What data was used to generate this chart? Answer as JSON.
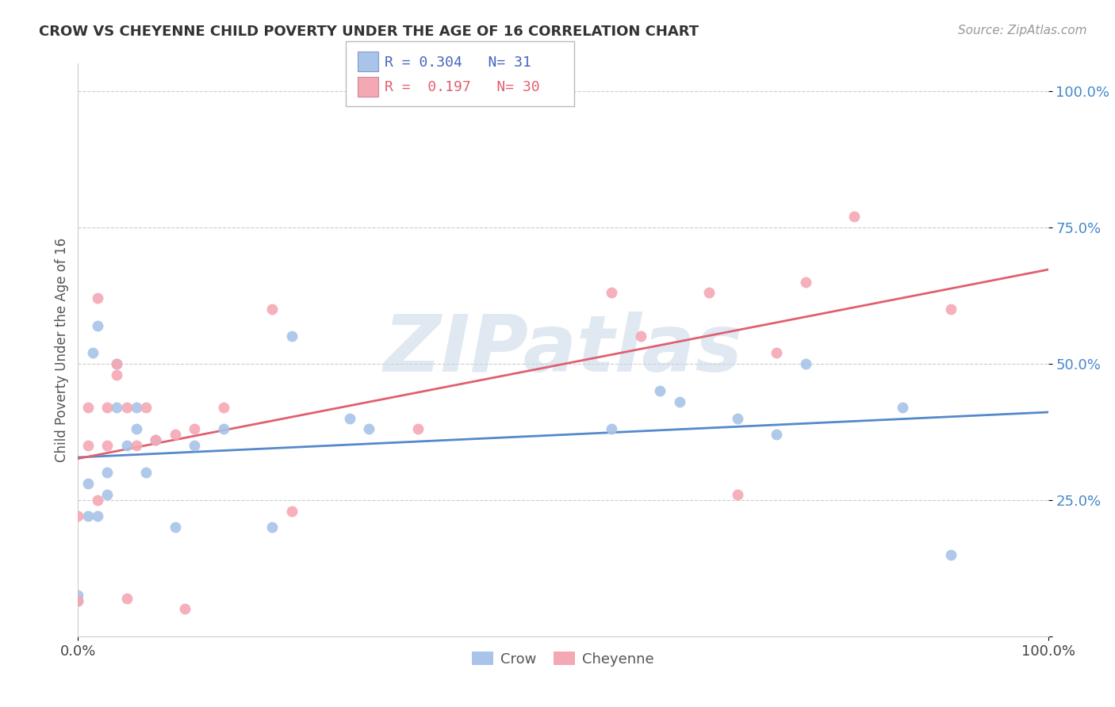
{
  "title": "CROW VS CHEYENNE CHILD POVERTY UNDER THE AGE OF 16 CORRELATION CHART",
  "source": "Source: ZipAtlas.com",
  "ylabel": "Child Poverty Under the Age of 16",
  "watermark": "ZIPatlas",
  "crow_R": 0.304,
  "crow_N": 31,
  "cheyenne_R": 0.197,
  "cheyenne_N": 30,
  "crow_color": "#a8c4e8",
  "cheyenne_color": "#f4a8b4",
  "crow_line_color": "#5588cc",
  "cheyenne_line_color": "#e06070",
  "legend_text_color_crow": "#4466bb",
  "legend_text_color_cheyenne": "#e06070",
  "crow_scatter_x": [
    0.0,
    0.0,
    0.01,
    0.01,
    0.015,
    0.02,
    0.02,
    0.03,
    0.03,
    0.04,
    0.04,
    0.05,
    0.06,
    0.06,
    0.07,
    0.08,
    0.1,
    0.12,
    0.15,
    0.2,
    0.22,
    0.28,
    0.3,
    0.55,
    0.6,
    0.62,
    0.68,
    0.72,
    0.75,
    0.85,
    0.9
  ],
  "crow_scatter_y": [
    0.065,
    0.075,
    0.22,
    0.28,
    0.52,
    0.57,
    0.22,
    0.26,
    0.3,
    0.42,
    0.5,
    0.35,
    0.38,
    0.42,
    0.3,
    0.36,
    0.2,
    0.35,
    0.38,
    0.2,
    0.55,
    0.4,
    0.38,
    0.38,
    0.45,
    0.43,
    0.4,
    0.37,
    0.5,
    0.42,
    0.15
  ],
  "cheyenne_scatter_x": [
    0.0,
    0.0,
    0.01,
    0.01,
    0.02,
    0.02,
    0.03,
    0.03,
    0.04,
    0.04,
    0.05,
    0.05,
    0.06,
    0.07,
    0.08,
    0.1,
    0.11,
    0.12,
    0.15,
    0.2,
    0.22,
    0.35,
    0.55,
    0.58,
    0.65,
    0.68,
    0.72,
    0.75,
    0.8,
    0.9
  ],
  "cheyenne_scatter_y": [
    0.065,
    0.22,
    0.35,
    0.42,
    0.25,
    0.62,
    0.35,
    0.42,
    0.48,
    0.5,
    0.42,
    0.07,
    0.35,
    0.42,
    0.36,
    0.37,
    0.05,
    0.38,
    0.42,
    0.6,
    0.23,
    0.38,
    0.63,
    0.55,
    0.63,
    0.26,
    0.52,
    0.65,
    0.77,
    0.6
  ],
  "background_color": "#ffffff",
  "grid_color": "#cccccc"
}
